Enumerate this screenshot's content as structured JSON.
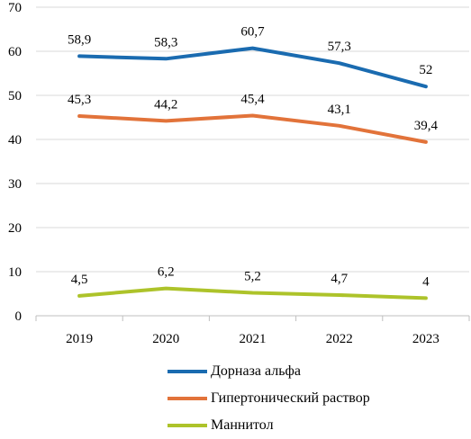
{
  "chart_data": {
    "type": "line",
    "x": [
      "2019",
      "2020",
      "2021",
      "2022",
      "2023"
    ],
    "y_ticks": [
      "0",
      "10",
      "20",
      "30",
      "40",
      "50",
      "60",
      "70"
    ],
    "ylim": [
      0,
      70
    ],
    "grid": true,
    "legend_position": "bottom",
    "series": [
      {
        "name": "Дорназа альфа",
        "color": "#1a6bb0",
        "values": [
          58.9,
          58.3,
          60.7,
          57.3,
          52
        ],
        "labels": [
          "58,9",
          "58,3",
          "60,7",
          "57,3",
          "52"
        ]
      },
      {
        "name": "Гипертонический раствор",
        "color": "#e2733a",
        "values": [
          45.3,
          44.2,
          45.4,
          43.1,
          39.4
        ],
        "labels": [
          "45,3",
          "44,2",
          "45,4",
          "43,1",
          "39,4"
        ]
      },
      {
        "name": "Маннитол",
        "color": "#adc32a",
        "values": [
          4.5,
          6.2,
          5.2,
          4.7,
          4
        ],
        "labels": [
          "4,5",
          "6,2",
          "5,2",
          "4,7",
          "4"
        ]
      }
    ]
  }
}
